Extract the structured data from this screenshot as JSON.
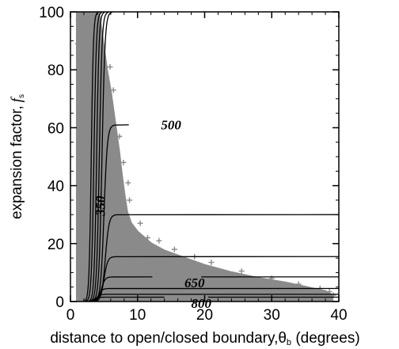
{
  "chart_data": {
    "type": "scatter",
    "xlabel": "distance to open/closed boundary,θ",
    "xlabel_sub": "b",
    "xlabel_unit": " (degrees)",
    "ylabel": "expansion factor,",
    "ylabel_symbol": "f",
    "ylabel_sub": "s",
    "xlim": [
      0,
      40
    ],
    "ylim": [
      0,
      100
    ],
    "x_ticks": [
      0,
      10,
      20,
      30,
      40
    ],
    "y_ticks": [
      0,
      20,
      40,
      60,
      80,
      100
    ],
    "grid": false,
    "legend": "none",
    "colors": {
      "scatter": "#8a8a8a",
      "contours": "#000000",
      "axes": "#000000"
    },
    "scatter_envelope": {
      "upper": [
        [
          1.0,
          100
        ],
        [
          2.0,
          100
        ],
        [
          3.2,
          100
        ],
        [
          4.2,
          100
        ],
        [
          4.8,
          90
        ],
        [
          5.4,
          80
        ],
        [
          6.0,
          72
        ],
        [
          6.6,
          62
        ],
        [
          7.2,
          52
        ],
        [
          7.6,
          44
        ],
        [
          8.0,
          37
        ],
        [
          8.4,
          31
        ],
        [
          9.0,
          27
        ],
        [
          10.0,
          24
        ],
        [
          12.0,
          20
        ],
        [
          14.0,
          17.5
        ],
        [
          17.0,
          15
        ],
        [
          20.0,
          12.5
        ],
        [
          24.0,
          10
        ],
        [
          28.0,
          8
        ],
        [
          32.0,
          6.5
        ],
        [
          36.0,
          4.5
        ],
        [
          38.0,
          3.5
        ],
        [
          39.0,
          2.2
        ]
      ],
      "lower": [
        [
          1.0,
          0
        ],
        [
          39.0,
          0
        ]
      ]
    },
    "scatter_outliers": [
      [
        1.2,
        97
      ],
      [
        1.6,
        94
      ],
      [
        1.1,
        89
      ],
      [
        1.8,
        86
      ],
      [
        2.1,
        82
      ],
      [
        1.4,
        77
      ],
      [
        2.3,
        72
      ],
      [
        6.4,
        73
      ],
      [
        5.9,
        81
      ],
      [
        7.3,
        57
      ],
      [
        7.9,
        48
      ],
      [
        8.6,
        41
      ],
      [
        8.8,
        35
      ],
      [
        10.4,
        27
      ],
      [
        11.5,
        22
      ],
      [
        13.2,
        21
      ],
      [
        15.5,
        18
      ],
      [
        18.5,
        15.5
      ],
      [
        21.0,
        13.5
      ],
      [
        25.5,
        10.5
      ],
      [
        30.0,
        8
      ],
      [
        34.0,
        6
      ],
      [
        37.2,
        4.5
      ],
      [
        38.6,
        3.4
      ],
      [
        39.2,
        2.2
      ]
    ],
    "series": [
      {
        "name": "350",
        "fs_plateau": 100,
        "theta_rise": 3.1,
        "rise_width": 0.35,
        "x_end": 3.1
      },
      {
        "fs_plateau": 100,
        "theta_rise": 3.5,
        "rise_width": 0.4,
        "x_end": 3.5
      },
      {
        "fs_plateau": 100,
        "theta_rise": 3.9,
        "rise_width": 0.4,
        "x_end": 3.9
      },
      {
        "fs_plateau": 100,
        "theta_rise": 4.3,
        "rise_width": 0.45,
        "x_end": 4.3
      },
      {
        "fs_plateau": 100,
        "theta_rise": 4.7,
        "rise_width": 0.5,
        "x_end": 4.7
      },
      {
        "name": "500",
        "fs_plateau": 61,
        "theta_rise": 5.0,
        "rise_width": 0.55,
        "x_end": 8.7
      },
      {
        "fs_plateau": 30,
        "theta_rise": 5.2,
        "rise_width": 0.6,
        "x_end": 40
      },
      {
        "fs_plateau": 15.5,
        "theta_rise": 5.0,
        "rise_width": 0.6,
        "x_end": 40
      },
      {
        "name": "650",
        "fs_plateau": 8.5,
        "theta_rise": 4.6,
        "rise_width": 0.6,
        "x_end": 12.2
      },
      {
        "fs_plateau": 8.5,
        "x_start": 19.5,
        "x_end": 40
      },
      {
        "fs_plateau": 4.5,
        "theta_rise": 4.2,
        "rise_width": 0.6,
        "x_end": 40
      },
      {
        "fs_plateau": 2.5,
        "theta_rise": 3.9,
        "rise_width": 0.6,
        "x_end": 40
      },
      {
        "name": "800",
        "fs_plateau": 1.5,
        "theta_rise": 3.5,
        "rise_width": 0.6,
        "x_end": 14
      },
      {
        "fs_plateau": 1.5,
        "x_start": 20.5,
        "x_end": 40
      }
    ],
    "annotations": [
      {
        "text": "500",
        "x": 15.0,
        "y": 61
      },
      {
        "text": "350",
        "x": 4.4,
        "y": 33,
        "rotate": -90
      },
      {
        "text": "650",
        "x": 18.5,
        "y": 6.5
      },
      {
        "text": "800",
        "x": 19.5,
        "y": -0.5
      }
    ]
  }
}
